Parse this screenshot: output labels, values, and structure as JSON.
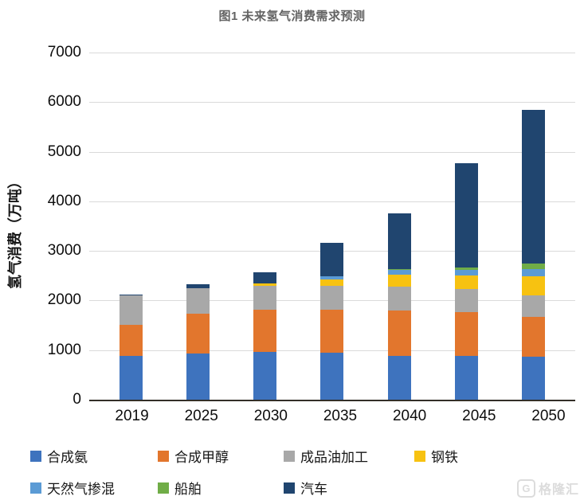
{
  "watermark": {
    "logo": "G",
    "text": "格隆汇"
  },
  "chart_data": {
    "type": "bar",
    "stacked": true,
    "title": "图1 未来氢气消费需求预测",
    "xlabel": "",
    "ylabel": "氢气消费（万吨）",
    "categories": [
      "2019",
      "2025",
      "2030",
      "2035",
      "2040",
      "2045",
      "2050"
    ],
    "series": [
      {
        "name": "合成氨",
        "color": "#3E73BE",
        "values": [
          880,
          930,
          960,
          940,
          890,
          880,
          870
        ]
      },
      {
        "name": "合成甲醇",
        "color": "#E2762D",
        "values": [
          630,
          800,
          860,
          880,
          910,
          880,
          800
        ]
      },
      {
        "name": "成品油加工",
        "color": "#A8A8A8",
        "values": [
          590,
          520,
          470,
          480,
          480,
          470,
          440
        ]
      },
      {
        "name": "钢铁",
        "color": "#F7C211",
        "values": [
          0,
          0,
          60,
          130,
          240,
          280,
          380
        ]
      },
      {
        "name": "天然气掺混",
        "color": "#5B9BD5",
        "values": [
          0,
          0,
          0,
          60,
          100,
          110,
          140
        ]
      },
      {
        "name": "船舶",
        "color": "#70AD47",
        "values": [
          0,
          0,
          0,
          0,
          20,
          40,
          110
        ]
      },
      {
        "name": "汽车",
        "color": "#20456F",
        "values": [
          20,
          80,
          220,
          680,
          1120,
          2110,
          3100
        ]
      }
    ],
    "totals": [
      2120,
      2330,
      2570,
      3170,
      3760,
      4770,
      5840
    ],
    "ylim": [
      0,
      7000
    ],
    "yticks": [
      0,
      1000,
      2000,
      3000,
      4000,
      5000,
      6000,
      7000
    ],
    "grid": true,
    "legend_position": "bottom",
    "colors": {
      "gridline": "#DADADA",
      "axis_line": "#332F28",
      "title_text": "#636363",
      "tick_text": "#0D0D0D"
    }
  }
}
